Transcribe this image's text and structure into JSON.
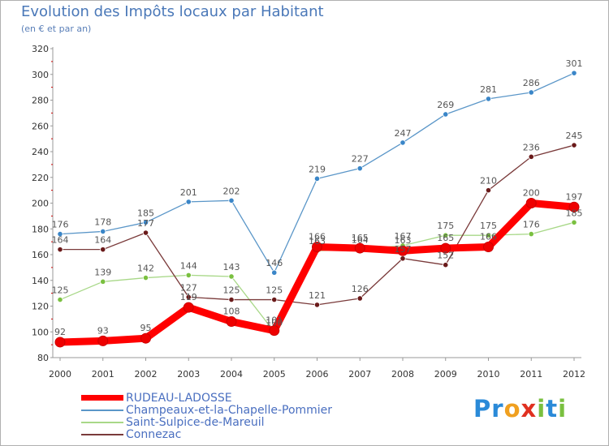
{
  "title": "Evolution des Impôts locaux par Habitant",
  "subtitle": "(en € et par an)",
  "brand": {
    "text": "Proxiti",
    "letters": [
      {
        "char": "P",
        "color": "#2a8ad8"
      },
      {
        "char": "r",
        "color": "#2a8ad8"
      },
      {
        "char": "o",
        "color": "#f0a020"
      },
      {
        "char": "x",
        "color": "#e03020"
      },
      {
        "char": "i",
        "color": "#7ac040"
      },
      {
        "char": "t",
        "color": "#2a8ad8"
      },
      {
        "char": "i",
        "color": "#7ac040"
      }
    ]
  },
  "chart_data": {
    "type": "line",
    "title": "Evolution des Impôts locaux par Habitant",
    "subtitle": "(en € et par an)",
    "xlabel": "",
    "ylabel": "",
    "ylim": [
      80,
      320
    ],
    "yticks": [
      80,
      100,
      120,
      140,
      160,
      180,
      200,
      220,
      240,
      260,
      280,
      300,
      320
    ],
    "grid": false,
    "legend_position": "bottom-left",
    "x": [
      "2000",
      "2001",
      "2002",
      "2003",
      "2004",
      "2005",
      "2006",
      "2007",
      "2008",
      "2009",
      "2010",
      "2011",
      "2012"
    ],
    "series": [
      {
        "name": "Champeaux-et-la-Chapelle-Pommier",
        "color": "#5a96c8",
        "marker": "#3a86c8",
        "values": [
          176,
          178,
          185,
          201,
          202,
          146,
          219,
          227,
          247,
          269,
          281,
          286,
          301
        ]
      },
      {
        "name": "Saint-Sulpice-de-Mareuil",
        "color": "#a8d888",
        "marker": "#7ac040",
        "values": [
          125,
          139,
          142,
          144,
          143,
          100,
          163,
          164,
          167,
          175,
          175,
          176,
          185
        ]
      },
      {
        "name": "Connezac",
        "color": "#7a3a3a",
        "marker": "#6a1a1a",
        "values": [
          164,
          164,
          177,
          127,
          125,
          125,
          121,
          126,
          157,
          152,
          210,
          236,
          245
        ]
      },
      {
        "name": "RUDEAU-LADOSSE",
        "color": "#ff0000",
        "marker": "#ee0000",
        "values": [
          92,
          93,
          95,
          119,
          108,
          101,
          166,
          165,
          163,
          165,
          166,
          200,
          197
        ]
      }
    ],
    "legend_order": [
      "RUDEAU-LADOSSE",
      "Champeaux-et-la-Chapelle-Pommier",
      "Saint-Sulpice-de-Mareuil",
      "Connezac"
    ]
  }
}
